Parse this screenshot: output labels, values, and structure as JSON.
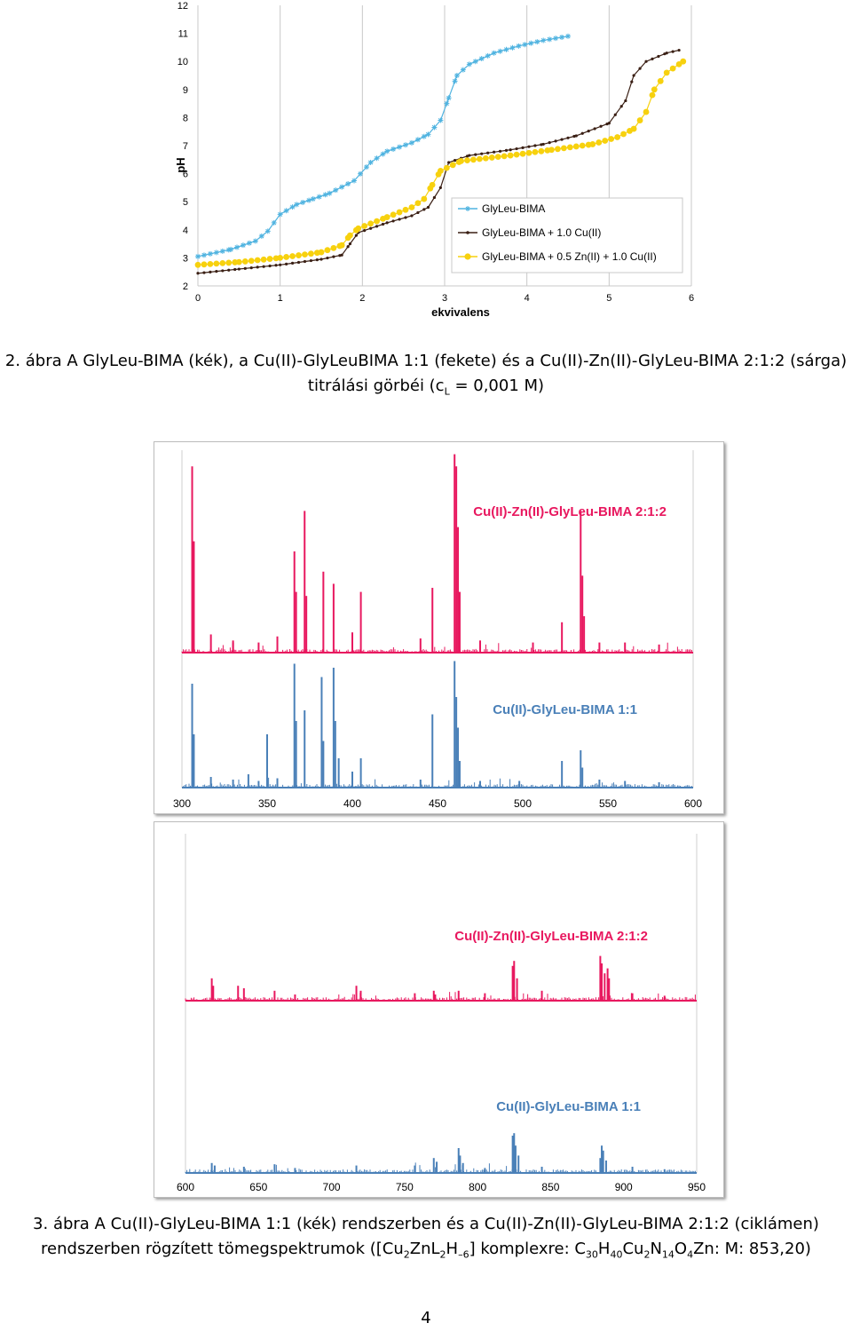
{
  "figure2": {
    "chart_data": {
      "type": "line",
      "xlabel": "ekvivalens",
      "ylabel": "pH",
      "xlim": [
        0,
        6
      ],
      "ylim": [
        2,
        12
      ],
      "x_ticks": [
        "0",
        "1",
        "2",
        "3",
        "4",
        "5",
        "6"
      ],
      "y_ticks": [
        "2",
        "3",
        "4",
        "5",
        "6",
        "7",
        "8",
        "9",
        "10",
        "11",
        "12"
      ],
      "grid": "vertical",
      "legend_position": "bottom-right",
      "series": [
        {
          "name": "GlyLeu-BIMA",
          "color": "#4fb3e0",
          "marker": "star",
          "points": [
            [
              0,
              3.05
            ],
            [
              0.4,
              3.3
            ],
            [
              0.7,
              3.6
            ],
            [
              0.85,
              3.95
            ],
            [
              1.0,
              4.55
            ],
            [
              1.2,
              4.9
            ],
            [
              1.4,
              5.1
            ],
            [
              1.6,
              5.3
            ],
            [
              1.9,
              5.75
            ],
            [
              2.1,
              6.4
            ],
            [
              2.3,
              6.8
            ],
            [
              2.6,
              7.1
            ],
            [
              2.8,
              7.4
            ],
            [
              2.95,
              7.9
            ],
            [
              3.05,
              8.7
            ],
            [
              3.15,
              9.5
            ],
            [
              3.3,
              9.9
            ],
            [
              3.6,
              10.3
            ],
            [
              3.9,
              10.55
            ],
            [
              4.2,
              10.75
            ],
            [
              4.5,
              10.9
            ]
          ]
        },
        {
          "name": "GlyLeu-BIMA + 1.0 Cu(II)",
          "color": "#3a1f14",
          "marker": "dot",
          "points": [
            [
              0,
              2.45
            ],
            [
              0.5,
              2.6
            ],
            [
              1.0,
              2.75
            ],
            [
              1.5,
              2.95
            ],
            [
              1.75,
              3.1
            ],
            [
              1.85,
              3.5
            ],
            [
              1.95,
              3.9
            ],
            [
              2.3,
              4.25
            ],
            [
              2.6,
              4.5
            ],
            [
              2.8,
              4.8
            ],
            [
              2.95,
              5.5
            ],
            [
              3.05,
              6.4
            ],
            [
              3.3,
              6.65
            ],
            [
              3.8,
              6.85
            ],
            [
              4.2,
              7.05
            ],
            [
              4.6,
              7.35
            ],
            [
              5.0,
              7.8
            ],
            [
              5.2,
              8.6
            ],
            [
              5.3,
              9.5
            ],
            [
              5.45,
              10.0
            ],
            [
              5.7,
              10.3
            ],
            [
              5.85,
              10.4
            ]
          ]
        },
        {
          "name": "GlyLeu-BIMA + 0.5 Zn(II) + 1.0 Cu(II)",
          "color": "#f7d10e",
          "marker": "dot",
          "points": [
            [
              0,
              2.75
            ],
            [
              0.5,
              2.85
            ],
            [
              1.0,
              3.0
            ],
            [
              1.5,
              3.2
            ],
            [
              1.75,
              3.45
            ],
            [
              1.85,
              3.8
            ],
            [
              1.95,
              4.05
            ],
            [
              2.3,
              4.45
            ],
            [
              2.6,
              4.8
            ],
            [
              2.75,
              5.1
            ],
            [
              2.85,
              5.6
            ],
            [
              2.95,
              6.1
            ],
            [
              3.2,
              6.45
            ],
            [
              3.8,
              6.65
            ],
            [
              4.3,
              6.85
            ],
            [
              4.8,
              7.05
            ],
            [
              5.1,
              7.3
            ],
            [
              5.3,
              7.6
            ],
            [
              5.45,
              8.2
            ],
            [
              5.55,
              9.0
            ],
            [
              5.7,
              9.6
            ],
            [
              5.9,
              10.0
            ]
          ]
        }
      ]
    },
    "caption_line1": "2. ábra A GlyLeu-BIMA (kék), a Cu(II)-GlyLeuBIMA 1:1 (fekete) és a Cu(II)-Zn(II)-GlyLeu-BIMA 2:1:2 (sárga)",
    "caption_line2_pre": "titrálási görbéi (c",
    "caption_line2_sub": "L",
    "caption_line2_post": " = 0,001 M)"
  },
  "figure3": {
    "chart_data": [
      {
        "type": "bar",
        "xlim": [
          300,
          600
        ],
        "x_ticks": [
          "300",
          "350",
          "400",
          "450",
          "500",
          "550",
          "600"
        ],
        "series": [
          {
            "name": "Cu(II)-Zn(II)-GlyLeu-BIMA 2:1:2",
            "color": "#e8185f",
            "peaks": [
              [
                306,
                0.92
              ],
              [
                307,
                0.55
              ],
              [
                366,
                0.5
              ],
              [
                367,
                0.3
              ],
              [
                372,
                0.7
              ],
              [
                373,
                0.28
              ],
              [
                383,
                0.4
              ],
              [
                389,
                0.34
              ],
              [
                405,
                0.3
              ],
              [
                447,
                0.32
              ],
              [
                460,
                0.98
              ],
              [
                461,
                0.92
              ],
              [
                462,
                0.62
              ],
              [
                463,
                0.3
              ],
              [
                506,
                0.05
              ],
              [
                523,
                0.15
              ],
              [
                534,
                0.7
              ],
              [
                535,
                0.38
              ],
              [
                536,
                0.18
              ],
              [
                317,
                0.09
              ],
              [
                330,
                0.05
              ],
              [
                356,
                0.08
              ],
              [
                400,
                0.1
              ],
              [
                440,
                0.07
              ],
              [
                475,
                0.06
              ],
              [
                545,
                0.05
              ],
              [
                560,
                0.05
              ],
              [
                580,
                0.04
              ],
              [
                330,
                0.06
              ],
              [
                345,
                0.05
              ]
            ]
          },
          {
            "name": "Cu(II)-GlyLeu-BIMA 1:1",
            "color": "#4a80b8",
            "peaks": [
              [
                306,
                0.78
              ],
              [
                307,
                0.4
              ],
              [
                350,
                0.4
              ],
              [
                366,
                0.93
              ],
              [
                367,
                0.5
              ],
              [
                372,
                0.58
              ],
              [
                382,
                0.83
              ],
              [
                383,
                0.35
              ],
              [
                389,
                0.9
              ],
              [
                390,
                0.5
              ],
              [
                392,
                0.22
              ],
              [
                405,
                0.22
              ],
              [
                447,
                0.55
              ],
              [
                460,
                0.95
              ],
              [
                461,
                0.68
              ],
              [
                462,
                0.45
              ],
              [
                463,
                0.2
              ],
              [
                498,
                0.05
              ],
              [
                523,
                0.2
              ],
              [
                534,
                0.28
              ],
              [
                535,
                0.15
              ],
              [
                317,
                0.08
              ],
              [
                339,
                0.1
              ],
              [
                356,
                0.07
              ],
              [
                400,
                0.12
              ],
              [
                440,
                0.06
              ],
              [
                475,
                0.05
              ],
              [
                545,
                0.06
              ],
              [
                560,
                0.05
              ],
              [
                580,
                0.04
              ],
              [
                330,
                0.06
              ],
              [
                345,
                0.05
              ]
            ]
          }
        ]
      },
      {
        "type": "bar",
        "xlim": [
          600,
          950
        ],
        "x_ticks": [
          "600",
          "650",
          "700",
          "750",
          "800",
          "850",
          "900",
          "950"
        ],
        "series": [
          {
            "name": "Cu(II)-Zn(II)-GlyLeu-BIMA 2:1:2",
            "color": "#e8185f",
            "peaks": [
              [
                618,
                0.18
              ],
              [
                619,
                0.12
              ],
              [
                636,
                0.12
              ],
              [
                640,
                0.1
              ],
              [
                661,
                0.08
              ],
              [
                675,
                0.05
              ],
              [
                717,
                0.12
              ],
              [
                720,
                0.08
              ],
              [
                757,
                0.06
              ],
              [
                770,
                0.08
              ],
              [
                771,
                0.05
              ],
              [
                787,
                0.08
              ],
              [
                805,
                0.06
              ],
              [
                824,
                0.28
              ],
              [
                825,
                0.32
              ],
              [
                827,
                0.18
              ],
              [
                844,
                0.08
              ],
              [
                884,
                0.36
              ],
              [
                885,
                0.3
              ],
              [
                887,
                0.22
              ],
              [
                889,
                0.26
              ],
              [
                890,
                0.18
              ],
              [
                906,
                0.06
              ],
              [
                928,
                0.04
              ]
            ]
          },
          {
            "name": "Cu(II)-GlyLeu-BIMA 1:1",
            "color": "#4a80b8",
            "peaks": [
              [
                618,
                0.08
              ],
              [
                620,
                0.06
              ],
              [
                640,
                0.05
              ],
              [
                661,
                0.07
              ],
              [
                675,
                0.04
              ],
              [
                717,
                0.06
              ],
              [
                757,
                0.06
              ],
              [
                770,
                0.12
              ],
              [
                772,
                0.09
              ],
              [
                787,
                0.2
              ],
              [
                788,
                0.14
              ],
              [
                790,
                0.08
              ],
              [
                805,
                0.04
              ],
              [
                824,
                0.3
              ],
              [
                825,
                0.32
              ],
              [
                826,
                0.22
              ],
              [
                828,
                0.14
              ],
              [
                844,
                0.05
              ],
              [
                884,
                0.12
              ],
              [
                885,
                0.22
              ],
              [
                886,
                0.18
              ],
              [
                888,
                0.1
              ],
              [
                906,
                0.05
              ],
              [
                928,
                0.03
              ]
            ]
          }
        ]
      }
    ],
    "caption_line1": "3. ábra A Cu(II)-GlyLeu-BIMA 1:1 (kék) rendszerben és a Cu(II)-Zn(II)-GlyLeu-BIMA 2:1:2 (ciklámen)",
    "caption_line2_pre": "rendszerben rögzített tömegspektrumok  ([Cu",
    "caption_line2_s1": "2",
    "caption_line2_m1": "ZnL",
    "caption_line2_s2": "2",
    "caption_line2_m2": "H",
    "caption_line2_s3": "–6",
    "caption_line2_m3": "] komplexre: C",
    "caption_line2_s4": "30",
    "caption_line2_m4": "H",
    "caption_line2_s5": "40",
    "caption_line2_m5": "Cu",
    "caption_line2_s6": "2",
    "caption_line2_m6": "N",
    "caption_line2_s7": "14",
    "caption_line2_m7": "O",
    "caption_line2_s8": "4",
    "caption_line2_post": "Zn: M: 853,20)"
  },
  "page_number": "4"
}
